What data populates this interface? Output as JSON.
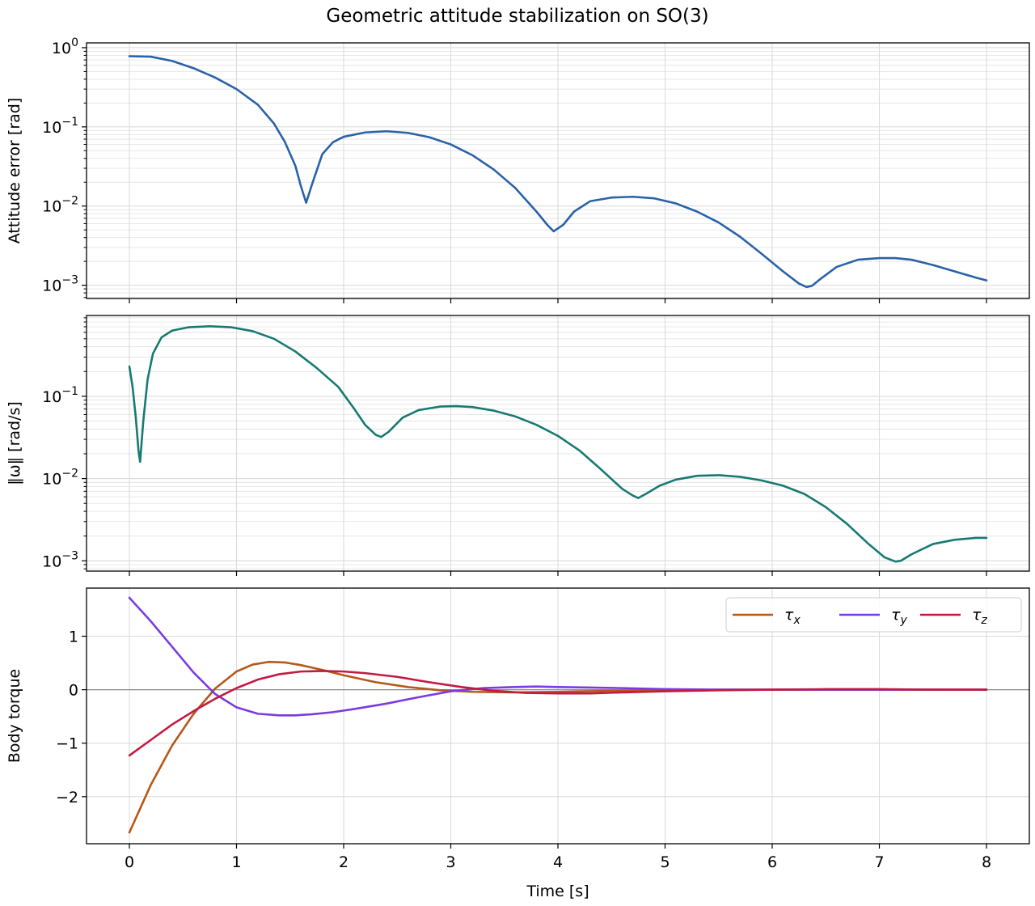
{
  "figure": {
    "title": "Geometric attitude stabilization on SO(3)",
    "xlabel": "Time [s]"
  },
  "chart_data": [
    {
      "type": "line",
      "ylabel": "Attitude error [rad]",
      "yscale": "log",
      "xlim": [
        -0.4,
        8.4
      ],
      "ylim": [
        0.00068,
        1.15
      ],
      "yticks": [
        {
          "value": 1,
          "mantissa": "10",
          "exp": "0"
        },
        {
          "value": 0.1,
          "mantissa": "10",
          "exp": "−1"
        },
        {
          "value": 0.01,
          "mantissa": "10",
          "exp": "−2"
        },
        {
          "value": 0.001,
          "mantissa": "10",
          "exp": "−3"
        }
      ],
      "grid": true,
      "series": [
        {
          "color": "#2a62a8",
          "x": [
            0,
            0.2,
            0.4,
            0.6,
            0.8,
            1.0,
            1.2,
            1.35,
            1.45,
            1.55,
            1.6,
            1.65,
            1.7,
            1.8,
            1.9,
            2.0,
            2.2,
            2.4,
            2.6,
            2.8,
            3.0,
            3.2,
            3.4,
            3.6,
            3.8,
            3.9,
            3.96,
            4.05,
            4.15,
            4.3,
            4.5,
            4.7,
            4.9,
            5.1,
            5.3,
            5.5,
            5.7,
            5.9,
            6.1,
            6.25,
            6.32,
            6.37,
            6.45,
            6.6,
            6.8,
            7.0,
            7.15,
            7.3,
            7.5,
            7.7,
            7.9,
            8.0
          ],
          "y": [
            0.78,
            0.77,
            0.68,
            0.55,
            0.42,
            0.3,
            0.19,
            0.11,
            0.065,
            0.032,
            0.018,
            0.011,
            0.018,
            0.045,
            0.064,
            0.075,
            0.085,
            0.088,
            0.084,
            0.074,
            0.06,
            0.044,
            0.029,
            0.017,
            0.0085,
            0.0058,
            0.0048,
            0.0058,
            0.0085,
            0.0115,
            0.0128,
            0.0131,
            0.0125,
            0.0108,
            0.0085,
            0.0062,
            0.0041,
            0.0025,
            0.0015,
            0.00105,
            0.00095,
            0.00098,
            0.0012,
            0.0017,
            0.0021,
            0.0022,
            0.0022,
            0.0021,
            0.0018,
            0.0015,
            0.00125,
            0.00115
          ]
        }
      ]
    },
    {
      "type": "line",
      "ylabel": "‖ω‖ [rad/s]",
      "yscale": "log",
      "xlim": [
        -0.4,
        8.4
      ],
      "ylim": [
        0.00075,
        0.96
      ],
      "yticks": [
        {
          "value": 0.1,
          "mantissa": "10",
          "exp": "−1"
        },
        {
          "value": 0.01,
          "mantissa": "10",
          "exp": "−2"
        },
        {
          "value": 0.001,
          "mantissa": "10",
          "exp": "−3"
        }
      ],
      "grid": true,
      "series": [
        {
          "color": "#177a72",
          "x": [
            0,
            0.03,
            0.06,
            0.085,
            0.1,
            0.13,
            0.17,
            0.22,
            0.3,
            0.4,
            0.55,
            0.75,
            0.95,
            1.15,
            1.35,
            1.55,
            1.75,
            1.95,
            2.1,
            2.2,
            2.3,
            2.35,
            2.42,
            2.55,
            2.7,
            2.9,
            3.05,
            3.2,
            3.4,
            3.6,
            3.8,
            4.0,
            4.2,
            4.4,
            4.6,
            4.7,
            4.75,
            4.82,
            4.95,
            5.1,
            5.3,
            5.5,
            5.7,
            5.9,
            6.1,
            6.3,
            6.5,
            6.7,
            6.9,
            7.05,
            7.15,
            7.2,
            7.3,
            7.5,
            7.7,
            7.9,
            8.0
          ],
          "y": [
            0.23,
            0.13,
            0.055,
            0.022,
            0.016,
            0.05,
            0.16,
            0.33,
            0.52,
            0.63,
            0.69,
            0.71,
            0.69,
            0.62,
            0.5,
            0.35,
            0.22,
            0.13,
            0.07,
            0.045,
            0.034,
            0.032,
            0.037,
            0.055,
            0.068,
            0.075,
            0.076,
            0.074,
            0.067,
            0.057,
            0.045,
            0.033,
            0.022,
            0.013,
            0.0075,
            0.0062,
            0.0058,
            0.0065,
            0.0082,
            0.0097,
            0.0108,
            0.011,
            0.0105,
            0.0095,
            0.0082,
            0.0065,
            0.0045,
            0.0028,
            0.0016,
            0.0011,
            0.00098,
            0.001,
            0.0012,
            0.0016,
            0.0018,
            0.0019,
            0.0019
          ]
        }
      ]
    },
    {
      "type": "line",
      "ylabel": "Body torque",
      "yscale": "linear",
      "xlim": [
        -0.4,
        8.4
      ],
      "ylim": [
        -2.88,
        1.9
      ],
      "yticks": [
        {
          "value": 1,
          "label": "1"
        },
        {
          "value": 0,
          "label": "0"
        },
        {
          "value": -1,
          "label": "−1"
        },
        {
          "value": -2,
          "label": "−2"
        }
      ],
      "grid": true,
      "zero_line": true,
      "legend": {
        "placement": "upper right",
        "columns": 3
      },
      "series": [
        {
          "name": "τx",
          "base": "τ",
          "sub": "x",
          "color": "#b5581a",
          "x": [
            0,
            0.2,
            0.4,
            0.6,
            0.8,
            1.0,
            1.15,
            1.3,
            1.45,
            1.6,
            1.8,
            2.0,
            2.3,
            2.6,
            2.9,
            3.2,
            3.6,
            4.0,
            4.5,
            5.0,
            5.5,
            6.0,
            6.5,
            7.0,
            7.5,
            8.0
          ],
          "y": [
            -2.67,
            -1.78,
            -1.04,
            -0.45,
            0.02,
            0.34,
            0.47,
            0.52,
            0.51,
            0.46,
            0.37,
            0.27,
            0.14,
            0.05,
            -0.01,
            -0.04,
            -0.05,
            -0.04,
            -0.02,
            -0.01,
            0.0,
            0.0,
            0.0,
            0.0,
            0.0,
            0.0
          ]
        },
        {
          "name": "τy",
          "base": "τ",
          "sub": "y",
          "color": "#7b3be0",
          "x": [
            0,
            0.2,
            0.4,
            0.6,
            0.8,
            1.0,
            1.2,
            1.4,
            1.55,
            1.7,
            1.9,
            2.1,
            2.4,
            2.7,
            3.0,
            3.3,
            3.6,
            3.8,
            4.0,
            4.3,
            4.6,
            5.0,
            5.5,
            6.0,
            6.5,
            7.0,
            7.5,
            8.0
          ],
          "y": [
            1.72,
            1.28,
            0.8,
            0.32,
            -0.08,
            -0.33,
            -0.45,
            -0.48,
            -0.48,
            -0.46,
            -0.42,
            -0.36,
            -0.26,
            -0.14,
            -0.03,
            0.03,
            0.05,
            0.06,
            0.05,
            0.04,
            0.03,
            0.01,
            0.0,
            0.0,
            0.0,
            0.0,
            0.0,
            0.0
          ]
        },
        {
          "name": "τz",
          "base": "τ",
          "sub": "z",
          "color": "#c21a43",
          "x": [
            0,
            0.2,
            0.4,
            0.6,
            0.8,
            1.0,
            1.2,
            1.4,
            1.6,
            1.8,
            2.0,
            2.2,
            2.5,
            2.8,
            3.1,
            3.4,
            3.7,
            4.0,
            4.3,
            4.6,
            5.0,
            5.5,
            6.0,
            6.5,
            7.0,
            7.5,
            8.0
          ],
          "y": [
            -1.23,
            -0.94,
            -0.65,
            -0.4,
            -0.17,
            0.03,
            0.19,
            0.29,
            0.34,
            0.35,
            0.34,
            0.31,
            0.24,
            0.14,
            0.05,
            -0.02,
            -0.06,
            -0.07,
            -0.07,
            -0.05,
            -0.03,
            -0.01,
            0.0,
            0.01,
            0.01,
            0.0,
            0.0
          ]
        }
      ]
    }
  ]
}
